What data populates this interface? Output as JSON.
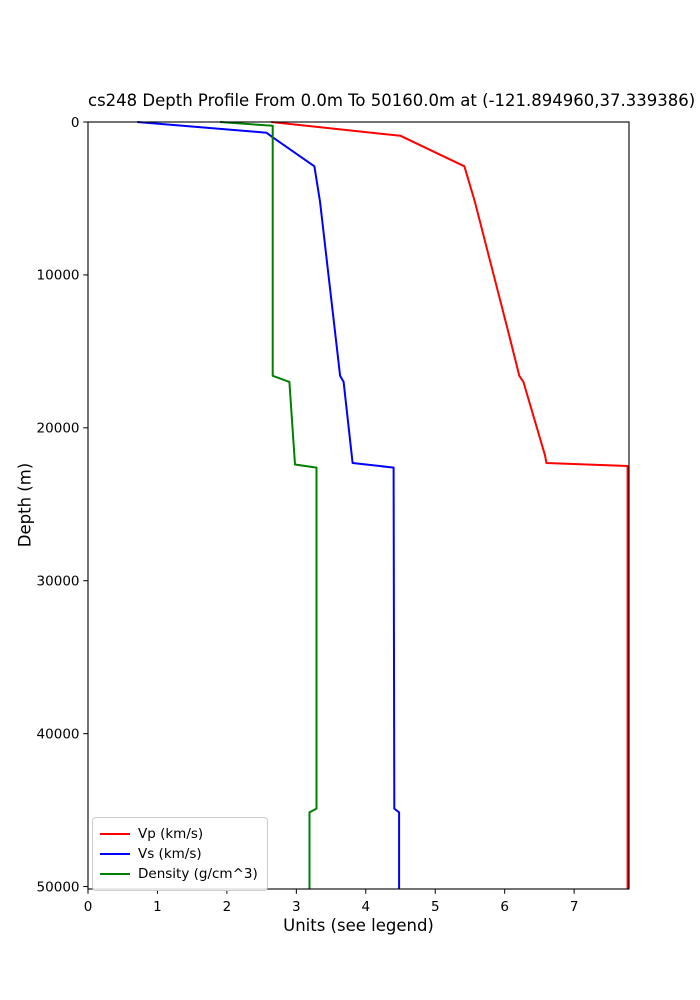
{
  "title": "cs248 Depth Profile From 0.0m To 50160.0m at (-121.894960,37.339386)",
  "chart_data": {
    "type": "line",
    "title": "cs248 Depth Profile From 0.0m To 50160.0m at (-121.894960,37.339386)",
    "xlabel": "Units (see legend)",
    "ylabel": "Depth (m)",
    "xlim": [
      0,
      7.79
    ],
    "ylim": [
      0,
      50160
    ],
    "y_inverted": true,
    "grid": false,
    "xticks": [
      0,
      1,
      2,
      3,
      4,
      5,
      6,
      7
    ],
    "yticks": [
      0,
      10000,
      20000,
      30000,
      40000,
      50000
    ],
    "legend_position": "lower left",
    "series": [
      {
        "name": "Vp (km/s)",
        "color": "#ff0000",
        "points_value_depth": [
          [
            2.64,
            0
          ],
          [
            4.5,
            900
          ],
          [
            5.42,
            2900
          ],
          [
            5.57,
            5200
          ],
          [
            6.05,
            13700
          ],
          [
            6.21,
            16600
          ],
          [
            6.27,
            17000
          ],
          [
            6.58,
            21800
          ],
          [
            6.6,
            22300
          ],
          [
            7.77,
            22500
          ],
          [
            7.77,
            50160
          ]
        ]
      },
      {
        "name": "Vs (km/s)",
        "color": "#0000ff",
        "points_value_depth": [
          [
            0.71,
            0
          ],
          [
            2.57,
            700
          ],
          [
            2.66,
            1000
          ],
          [
            3.26,
            2900
          ],
          [
            3.34,
            5200
          ],
          [
            3.63,
            16600
          ],
          [
            3.68,
            17000
          ],
          [
            3.81,
            22300
          ],
          [
            4.4,
            22600
          ],
          [
            4.41,
            44900
          ],
          [
            4.48,
            45150
          ],
          [
            4.48,
            50160
          ]
        ]
      },
      {
        "name": "Density (g/cm^3)",
        "color": "#008000",
        "points_value_depth": [
          [
            1.9,
            0
          ],
          [
            2.66,
            250
          ],
          [
            2.66,
            16600
          ],
          [
            2.9,
            17000
          ],
          [
            2.98,
            22400
          ],
          [
            3.29,
            22600
          ],
          [
            3.29,
            44900
          ],
          [
            3.19,
            45150
          ],
          [
            3.19,
            50160
          ]
        ]
      }
    ]
  }
}
